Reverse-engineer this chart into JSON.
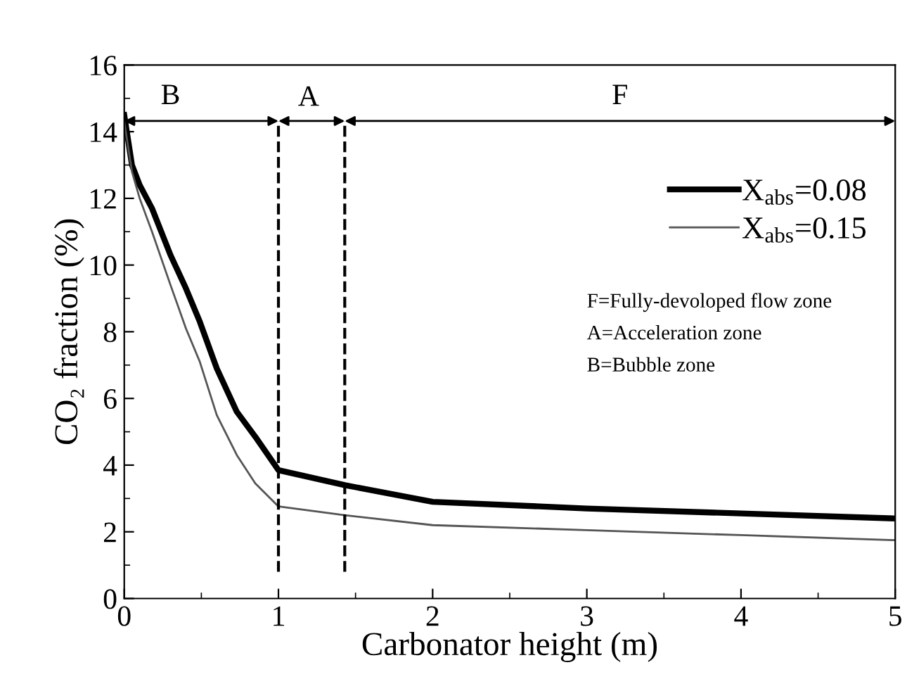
{
  "chart_data": {
    "type": "line",
    "xlabel": "Carbonator height (m)",
    "ylabel": "CO₂ fraction (%)",
    "xlim": [
      0,
      5
    ],
    "ylim": [
      0,
      16
    ],
    "xticks": [
      0,
      1,
      2,
      3,
      4,
      5
    ],
    "yticks": [
      0,
      2,
      4,
      6,
      8,
      10,
      12,
      14,
      16
    ],
    "grid": false,
    "legend": "top right",
    "marker": "none",
    "line_style": "solid",
    "series": [
      {
        "name": "X$_{abs}$=0.08",
        "color": "#000000",
        "x": [
          0,
          0.05,
          0.1,
          0.18,
          0.3,
          0.4,
          0.49,
          0.6,
          0.73,
          0.85,
          1,
          1.43,
          2,
          3,
          4,
          5
        ],
        "values": [
          14.5,
          13.0,
          12.4,
          11.7,
          10.3,
          9.3,
          8.3,
          6.9,
          5.6,
          4.85,
          3.85,
          3.4,
          2.9,
          2.7,
          2.55,
          2.4
        ]
      },
      {
        "name": "X$_{abs}$=0.15",
        "color": "#555555",
        "x": [
          0,
          0.05,
          0.1,
          0.18,
          0.3,
          0.4,
          0.49,
          0.6,
          0.73,
          0.85,
          1,
          1.43,
          2,
          3,
          4,
          5
        ],
        "values": [
          14.3,
          12.8,
          12.0,
          11.0,
          9.4,
          8.1,
          7.1,
          5.5,
          4.3,
          3.45,
          2.76,
          2.5,
          2.2,
          2.05,
          1.9,
          1.75
        ]
      }
    ],
    "ref_lines": [
      {
        "axis": "x",
        "value": 1,
        "color": "#000000",
        "line_style": "dashed"
      },
      {
        "axis": "x",
        "value": 1.43,
        "color": "#000000",
        "line_style": "dashed"
      }
    ],
    "annotations": [
      "B",
      {
        "text": "A",
        "x": 1,
        "y": 14.3
      },
      "F",
      "F=Fully-devoloped flow zone",
      "A=Acceleration zone",
      "B=Bubble zone"
    ]
  }
}
